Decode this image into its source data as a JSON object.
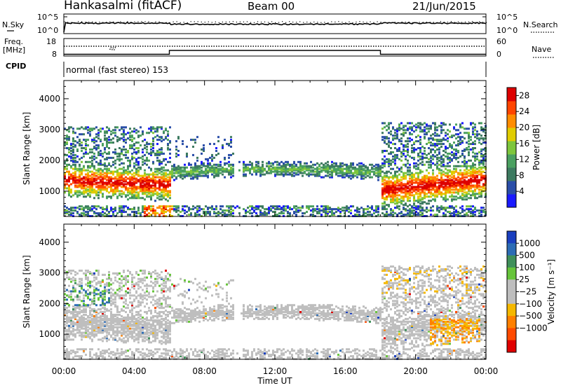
{
  "header": {
    "station": "Hankasalmi (fitACF)",
    "beam": "Beam 00",
    "date": "21/Jun/2015"
  },
  "nsky_panel": {
    "left_label": "N.Sky",
    "right_label": "N.Search",
    "ytick_high": "10^5",
    "ytick_low": "10^0"
  },
  "freq_panel": {
    "left_label_line1": "Freq.",
    "left_label_line2": "[MHz]",
    "left_tick_high": "18",
    "left_tick_low": "8",
    "right_label": "Nave",
    "right_tick_high": "60",
    "right_tick_low": "0"
  },
  "cpid_panel": {
    "label": "CPID",
    "text": "normal (fast stereo) 153"
  },
  "colors": {
    "power_scale": [
      "#1a1aff",
      "#2a4ea8",
      "#3d7a60",
      "#4aa060",
      "#7ec63c",
      "#e0cc00",
      "#ff8c00",
      "#ff4500",
      "#dd0000"
    ],
    "velocity_scale": [
      "#1a3fbf",
      "#2c6cb5",
      "#3f8f5a",
      "#66c43a",
      "#bebebe",
      "#bebebe",
      "#f5b800",
      "#ff8000",
      "#ff4a00",
      "#e00000"
    ],
    "velocity_dominant": "#bebebe"
  },
  "chart_data": [
    {
      "type": "heatmap",
      "title": "Power",
      "xlabel": "Time UT",
      "ylabel": "Slant Range [km]",
      "x_ticks": [
        "00:00",
        "04:00",
        "08:00",
        "12:00",
        "16:00",
        "20:00",
        "00:00"
      ],
      "xlim_hours": [
        0,
        24
      ],
      "ylim_km": [
        180,
        4590
      ],
      "y_ticks": [
        1000,
        2000,
        3000,
        4000
      ],
      "colorbar": {
        "label": "Power [dB]",
        "ticks": [
          4,
          8,
          12,
          16,
          20,
          24,
          28
        ],
        "range": [
          0,
          30
        ]
      },
      "features": [
        {
          "name": "main band",
          "time_hours": [
            0,
            6
          ],
          "range_km": [
            900,
            1800
          ],
          "peak_db": 30
        },
        {
          "name": "main band",
          "time_hours": [
            6,
            18
          ],
          "range_km": [
            1300,
            1900
          ],
          "peak_db": 12
        },
        {
          "name": "main band",
          "time_hours": [
            18,
            24
          ],
          "range_km": [
            900,
            1700
          ],
          "peak_db": 30
        },
        {
          "name": "near-range echoes",
          "time_hours": [
            0,
            24
          ],
          "range_km": [
            180,
            500
          ],
          "peak_db": 20
        }
      ]
    },
    {
      "type": "heatmap",
      "title": "Velocity",
      "xlabel": "Time UT",
      "ylabel": "Slant Range [km]",
      "x_ticks": [
        "00:00",
        "04:00",
        "08:00",
        "12:00",
        "16:00",
        "20:00",
        "00:00"
      ],
      "xlim_hours": [
        0,
        24
      ],
      "ylim_km": [
        180,
        4590
      ],
      "y_ticks": [
        1000,
        2000,
        3000,
        4000
      ],
      "colorbar": {
        "label": "Velocity [m s⁻¹]",
        "ticks": [
          "1000",
          "500",
          "100",
          "25",
          "−25",
          "−100",
          "−500",
          "−1000"
        ]
      },
      "features": [
        {
          "name": "positive patch",
          "time_hours": [
            0.2,
            2.5
          ],
          "range_km": [
            1900,
            2600
          ],
          "velocity": 300
        },
        {
          "name": "negative patch",
          "time_hours": [
            21,
            23.5
          ],
          "range_km": [
            600,
            1500
          ],
          "velocity": -500
        }
      ]
    }
  ],
  "axes": {
    "xlabel": "Time UT",
    "ylabel": "Slant Range [km]"
  }
}
